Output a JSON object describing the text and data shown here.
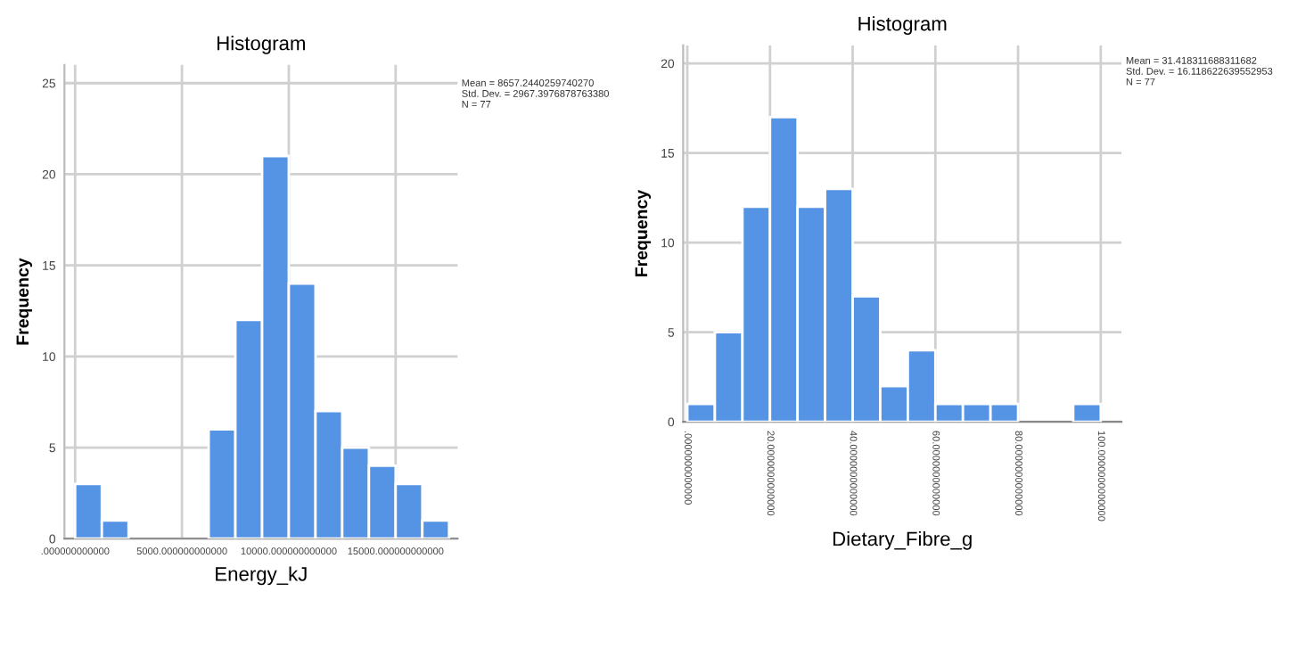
{
  "chart_data": [
    {
      "type": "histogram",
      "title": "Histogram",
      "xlabel": "Energy_kJ",
      "ylabel": "Frequency",
      "bins": [
        0,
        1250,
        2500,
        3750,
        5000,
        6250,
        7500,
        8750,
        10000,
        11250,
        12500,
        13750,
        15000,
        16250,
        17500
      ],
      "values": [
        3,
        1,
        0,
        0,
        0,
        6,
        12,
        21,
        14,
        7,
        5,
        4,
        3,
        1
      ],
      "color": "#5593e4",
      "xlim": [
        -500,
        17900
      ],
      "ylim": [
        0,
        26
      ],
      "xticks": [
        {
          "value": 0,
          "label": ".000000000000"
        },
        {
          "value": 5000,
          "label": "5000.000000000000"
        },
        {
          "value": 10000,
          "label": "10000.000000000000"
        },
        {
          "value": 15000,
          "label": "15000.000000000000"
        }
      ],
      "yticks": [
        0,
        5,
        10,
        15,
        20,
        25
      ],
      "grid": true,
      "annotations": [
        "Mean = 8657.2440259740270\nStd. Dev. = 2967.3976878763380\nN = 77"
      ]
    },
    {
      "type": "histogram",
      "title": "Histogram",
      "xlabel": "Dietary_Fibre_g",
      "ylabel": "Frequency",
      "bins": [
        0,
        6.667,
        13.333,
        20,
        26.667,
        33.333,
        40,
        46.667,
        53.333,
        60,
        66.667,
        73.333,
        80,
        86.667,
        93.333,
        100
      ],
      "values": [
        1,
        5,
        12,
        17,
        12,
        13,
        7,
        2,
        4,
        1,
        1,
        1,
        0,
        0,
        1
      ],
      "color": "#5593e4",
      "xlim": [
        -1,
        105
      ],
      "ylim": [
        0,
        21
      ],
      "xticks": [
        {
          "value": 0,
          "label": ".0000000000000"
        },
        {
          "value": 20,
          "label": "20.0000000000000"
        },
        {
          "value": 40,
          "label": "40.0000000000000"
        },
        {
          "value": 60,
          "label": "60.0000000000000"
        },
        {
          "value": 80,
          "label": "80.0000000000000"
        },
        {
          "value": 100,
          "label": "100.0000000000000"
        }
      ],
      "yticks": [
        0,
        5,
        10,
        15,
        20
      ],
      "grid": true,
      "annotations": [
        "Mean = 31.418311688311682\nStd. Dev. = 16.118622639552953\nN = 77"
      ]
    }
  ]
}
